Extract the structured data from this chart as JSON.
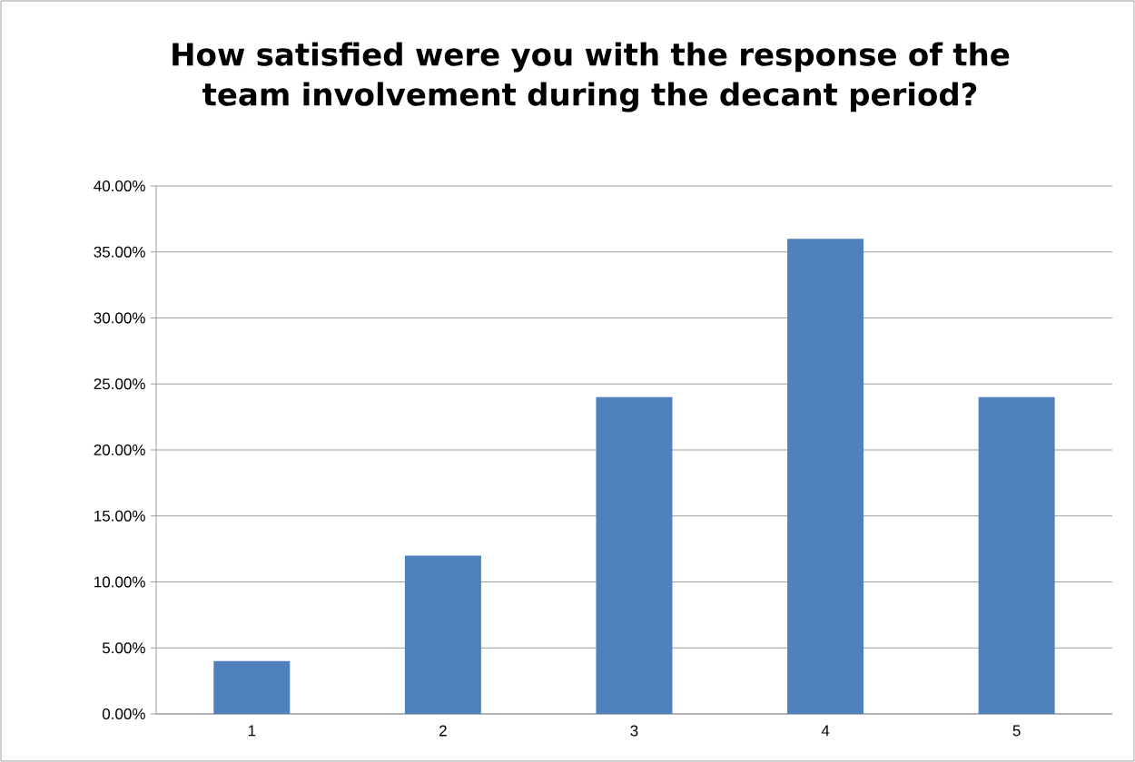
{
  "chart_data": {
    "type": "bar",
    "title": "How satisfied were you with the response of the team involvement during the decant period?",
    "categories": [
      "1",
      "2",
      "3",
      "4",
      "5"
    ],
    "values": [
      4,
      12,
      24,
      36,
      24
    ],
    "color": "#4f81bd",
    "ylim": [
      0,
      40
    ],
    "yticks": [
      {
        "value": 0,
        "label": "0.00%"
      },
      {
        "value": 5,
        "label": "5.00%"
      },
      {
        "value": 10,
        "label": "10.00%"
      },
      {
        "value": 15,
        "label": "15.00%"
      },
      {
        "value": 20,
        "label": "20.00%"
      },
      {
        "value": 25,
        "label": "25.00%"
      },
      {
        "value": 30,
        "label": "30.00%"
      },
      {
        "value": 35,
        "label": "35.00%"
      },
      {
        "value": 40,
        "label": "40.00%"
      }
    ],
    "grid": "y"
  }
}
